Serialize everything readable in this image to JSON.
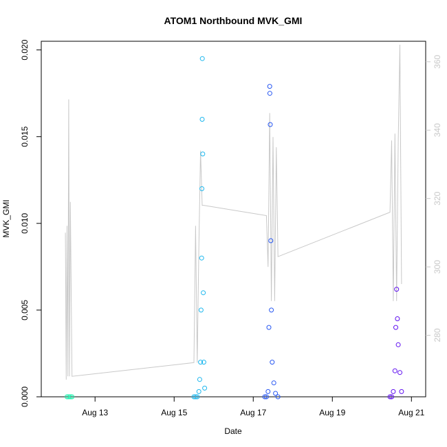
{
  "chart_data": {
    "type": "scatter",
    "title": "ATOM1 Northbound MVK_GMI",
    "xlabel": "Date",
    "ylabel": "MVK_GMI",
    "x_ticks": [
      "Aug 13",
      "Aug 15",
      "Aug 17",
      "Aug 19",
      "Aug 21"
    ],
    "y_ticks": [
      "0.000",
      "0.005",
      "0.010",
      "0.015",
      "0.020"
    ],
    "y2_ticks": [
      "280",
      "300",
      "320",
      "340",
      "360"
    ],
    "xlim": [
      "2020-08-12",
      "2020-08-21"
    ],
    "ylim": [
      0,
      0.0205
    ],
    "y2lim": [
      262,
      366
    ],
    "grid": false,
    "series": [
      {
        "color": "#1bf1ad",
        "points": [
          [
            "2020-08-12 07:00",
            0.0
          ],
          [
            "2020-08-12 08:00",
            0.0
          ],
          [
            "2020-08-12 09:00",
            0.0
          ],
          [
            "2020-08-12 10:00",
            0.0
          ]
        ]
      },
      {
        "color": "#1cb7ee",
        "points": [
          [
            "2020-08-15 12:00",
            0.0
          ],
          [
            "2020-08-15 13:00",
            0.0
          ],
          [
            "2020-08-15 14:00",
            0.0
          ],
          [
            "2020-08-15 15:00",
            0.0003
          ],
          [
            "2020-08-15 15:30",
            0.001
          ],
          [
            "2020-08-15 16:00",
            0.002
          ],
          [
            "2020-08-15 16:20",
            0.005
          ],
          [
            "2020-08-15 16:40",
            0.008
          ],
          [
            "2020-08-15 16:50",
            0.012
          ],
          [
            "2020-08-15 17:00",
            0.016
          ],
          [
            "2020-08-15 17:05",
            0.0195
          ],
          [
            "2020-08-15 17:20",
            0.014
          ],
          [
            "2020-08-15 17:40",
            0.006
          ],
          [
            "2020-08-15 18:00",
            0.002
          ],
          [
            "2020-08-15 18:30",
            0.0005
          ]
        ]
      },
      {
        "color": "#2757f2",
        "points": [
          [
            "2020-08-17 07:00",
            0.0
          ],
          [
            "2020-08-17 08:00",
            0.0
          ],
          [
            "2020-08-17 09:00",
            0.0003
          ],
          [
            "2020-08-17 09:30",
            0.004
          ],
          [
            "2020-08-17 10:00",
            0.0179
          ],
          [
            "2020-08-17 10:05",
            0.0175
          ],
          [
            "2020-08-17 10:20",
            0.0157
          ],
          [
            "2020-08-17 10:40",
            0.009
          ],
          [
            "2020-08-17 11:00",
            0.005
          ],
          [
            "2020-08-17 11:30",
            0.002
          ],
          [
            "2020-08-17 12:30",
            0.0008
          ],
          [
            "2020-08-17 13:30",
            0.0002
          ],
          [
            "2020-08-17 15:00",
            0.0
          ]
        ]
      },
      {
        "color": "#6010f0",
        "points": [
          [
            "2020-08-20 11:00",
            0.0
          ],
          [
            "2020-08-20 12:00",
            0.0
          ],
          [
            "2020-08-20 13:00",
            0.0003
          ],
          [
            "2020-08-20 14:00",
            0.0015
          ],
          [
            "2020-08-20 14:30",
            0.004
          ],
          [
            "2020-08-20 15:00",
            0.0062
          ],
          [
            "2020-08-20 15:30",
            0.0045
          ],
          [
            "2020-08-20 16:00",
            0.003
          ],
          [
            "2020-08-20 17:00",
            0.0014
          ],
          [
            "2020-08-20 18:00",
            0.0003
          ]
        ]
      }
    ],
    "secondary_series": {
      "color": "#c8c8c8",
      "points": [
        [
          "2020-08-12 06:00",
          310
        ],
        [
          "2020-08-12 06:30",
          267
        ],
        [
          "2020-08-12 07:00",
          312
        ],
        [
          "2020-08-12 07:30",
          268
        ],
        [
          "2020-08-12 08:00",
          349
        ],
        [
          "2020-08-12 08:30",
          268
        ],
        [
          "2020-08-12 09:00",
          319
        ],
        [
          "2020-08-12 10:00",
          268
        ],
        [
          "2020-08-15 12:00",
          272
        ],
        [
          "2020-08-15 13:00",
          312
        ],
        [
          "2020-08-15 14:00",
          272
        ],
        [
          "2020-08-15 15:00",
          306
        ],
        [
          "2020-08-15 16:00",
          334
        ],
        [
          "2020-08-15 17:00",
          318
        ],
        [
          "2020-08-15 18:00",
          318
        ],
        [
          "2020-08-17 08:00",
          315
        ],
        [
          "2020-08-17 09:00",
          300
        ],
        [
          "2020-08-17 10:00",
          345
        ],
        [
          "2020-08-17 11:00",
          290
        ],
        [
          "2020-08-17 12:00",
          338
        ],
        [
          "2020-08-17 13:00",
          290
        ],
        [
          "2020-08-17 14:00",
          335
        ],
        [
          "2020-08-17 15:00",
          303
        ],
        [
          "2020-08-20 11:00",
          316
        ],
        [
          "2020-08-20 12:00",
          337
        ],
        [
          "2020-08-20 13:00",
          290
        ],
        [
          "2020-08-20 14:00",
          339
        ],
        [
          "2020-08-20 15:00",
          290
        ],
        [
          "2020-08-20 16:00",
          337
        ],
        [
          "2020-08-20 17:00",
          365
        ],
        [
          "2020-08-20 18:00",
          295
        ]
      ]
    }
  }
}
